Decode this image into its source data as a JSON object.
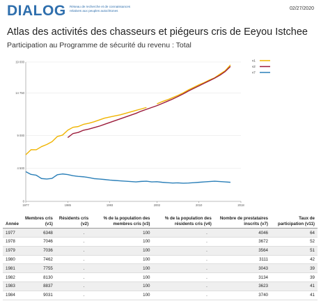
{
  "header": {
    "logo": "DIALOG",
    "tagline": "Réseau de recherche et de connaissances relatives aux peuples autochtones",
    "date": "02/27/2020"
  },
  "title": "Atlas des activités des chasseurs et piégeurs cris de Eeyou Istchee",
  "subtitle": "Participation au Programme de sécurité du revenu : Total",
  "colors": {
    "v1": "#f0b400",
    "v2": "#9b1b3a",
    "v7": "#2a7fb8"
  },
  "chart_data": {
    "type": "line",
    "x": [
      1977,
      1978,
      1979,
      1980,
      1981,
      1982,
      1983,
      1984,
      1985,
      1986,
      1987,
      1988,
      1989,
      1990,
      1991,
      1992,
      1993,
      1994,
      1995,
      1996,
      1997,
      1998,
      1999,
      2000,
      2001,
      2002,
      2003,
      2004,
      2005,
      2006,
      2007,
      2008,
      2009,
      2010,
      2011,
      2012,
      2013,
      2014,
      2015,
      2016
    ],
    "xticks": [
      1977,
      1985,
      1993,
      2002,
      2010,
      2018
    ],
    "yticks": [
      0,
      4500,
      9000,
      14750,
      19000
    ],
    "yticklabels": [
      "0",
      "4 500",
      "9 000",
      "14 750",
      "19 000"
    ],
    "ylim": [
      0,
      19000
    ],
    "xlim": [
      1977,
      2018
    ],
    "series": [
      {
        "name": "v1",
        "values": [
          6348,
          7046,
          7036,
          7462,
          7755,
          8130,
          8837,
          9031,
          9700,
          10100,
          10200,
          10500,
          10650,
          10850,
          11100,
          11350,
          11500,
          11650,
          11800,
          12000,
          12200,
          12400,
          12600,
          12800,
          null,
          13300,
          13600,
          13850,
          14150,
          14450,
          14800,
          15200,
          15550,
          15900,
          16200,
          16550,
          16850,
          17350,
          17800,
          18600
        ]
      },
      {
        "name": "v2",
        "values": [
          null,
          null,
          null,
          null,
          null,
          null,
          null,
          null,
          8700,
          9250,
          9400,
          9700,
          9850,
          10050,
          10250,
          10500,
          10750,
          11000,
          11250,
          11500,
          11750,
          12000,
          12300,
          12550,
          12800,
          13050,
          13350,
          13650,
          13950,
          14300,
          14650,
          15050,
          15400,
          15750,
          16100,
          16450,
          16800,
          17200,
          17700,
          18400
        ]
      },
      {
        "name": "v7",
        "values": [
          4046,
          3672,
          3564,
          3111,
          3043,
          3134,
          3623,
          3740,
          3650,
          3500,
          3400,
          3350,
          3250,
          3100,
          3050,
          2980,
          2900,
          2850,
          2800,
          2750,
          2700,
          2650,
          2720,
          2750,
          2650,
          2680,
          2600,
          2550,
          2500,
          2520,
          2480,
          2500,
          2550,
          2600,
          2650,
          2700,
          2750,
          2700,
          2650,
          2600
        ]
      }
    ]
  },
  "table": {
    "headers": [
      "Année",
      "Membres cris (v1)",
      "Résidents cris (v2)",
      "% de la population des membres cris (v3)",
      "% de la population des résidents cris (v4)",
      "Nombre de prestataires inscrits (v7)",
      "Taux de participation (v11)"
    ],
    "rows": [
      [
        "1977",
        "6348",
        ".",
        "100",
        ".",
        "4046",
        "64"
      ],
      [
        "1978",
        "7046",
        ".",
        "100",
        ".",
        "3672",
        "52"
      ],
      [
        "1979",
        "7036",
        ".",
        "100",
        ".",
        "3564",
        "51"
      ],
      [
        "1980",
        "7462",
        ".",
        "100",
        ".",
        "3111",
        "42"
      ],
      [
        "1981",
        "7755",
        ".",
        "100",
        ".",
        "3043",
        "39"
      ],
      [
        "1982",
        "8130",
        ".",
        "100",
        ".",
        "3134",
        "39"
      ],
      [
        "1983",
        "8837",
        ".",
        "100",
        ".",
        "3623",
        "41"
      ],
      [
        "1984",
        "9031",
        ".",
        "100",
        ".",
        "3740",
        "41"
      ]
    ]
  }
}
